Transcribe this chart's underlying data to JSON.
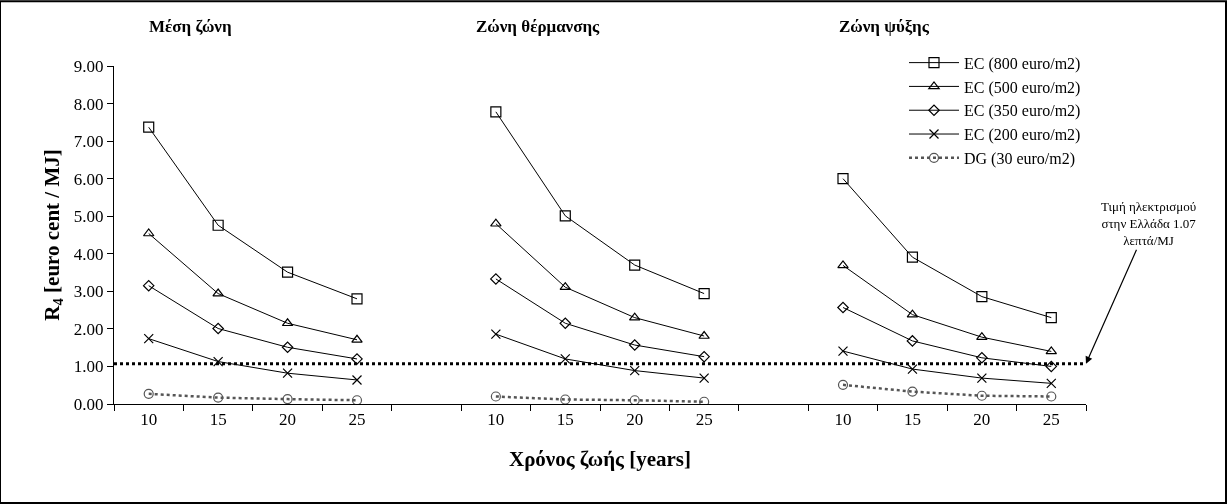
{
  "chart_data": {
    "type": "line",
    "xlabel": "Χρόνος ζωής [years]",
    "ylabel": "R$_{4}$ [euro cent / MJ]",
    "annotations": [
      "Μέση ζώνη",
      "Ζώνη θέρμανσης",
      "Ζώνη ψύξης"
    ],
    "categories": [
      "10",
      "15",
      "20",
      "25",
      null,
      "10",
      "15",
      "20",
      "25",
      null,
      "10",
      "15",
      "20",
      "25"
    ],
    "series": [
      {
        "name": "EC (800 euro/m2)",
        "color": "#000000",
        "marker": "square",
        "line_style": "solid",
        "values": [
          7.37,
          4.76,
          3.51,
          2.8,
          null,
          7.78,
          5.01,
          3.7,
          2.94,
          null,
          6.0,
          3.91,
          2.86,
          2.3
        ]
      },
      {
        "name": "EC (500 euro/m2)",
        "color": "#000000",
        "marker": "triangle",
        "line_style": "solid",
        "values": [
          4.54,
          2.94,
          2.15,
          1.71,
          null,
          4.8,
          3.11,
          2.3,
          1.81,
          null,
          3.69,
          2.38,
          1.78,
          1.4
        ]
      },
      {
        "name": "EC (350 euro/m2)",
        "color": "#000000",
        "marker": "diamond",
        "line_style": "solid",
        "values": [
          3.15,
          2.01,
          1.51,
          1.2,
          null,
          3.33,
          2.15,
          1.57,
          1.26,
          null,
          2.57,
          1.68,
          1.23,
          1.0
        ]
      },
      {
        "name": "EC (200 euro/m2)",
        "color": "#000000",
        "marker": "cross",
        "line_style": "solid",
        "values": [
          1.74,
          1.13,
          0.82,
          0.64,
          null,
          1.86,
          1.2,
          0.89,
          0.69,
          null,
          1.41,
          0.93,
          0.69,
          0.55
        ]
      },
      {
        "name": "DG (30 euro/m2)",
        "color": "#555555",
        "marker": "circle",
        "line_style": "dotted",
        "values": [
          0.27,
          0.17,
          0.13,
          0.1,
          null,
          0.2,
          0.12,
          0.1,
          0.06,
          null,
          0.51,
          0.33,
          0.22,
          0.2
        ]
      }
    ],
    "ylim": [
      0,
      9
    ],
    "yticks": [
      {
        "value": 0,
        "label": "0.00"
      },
      {
        "value": 1,
        "label": "1.00"
      },
      {
        "value": 2,
        "label": "2.00"
      },
      {
        "value": 3,
        "label": "3.00"
      },
      {
        "value": 4,
        "label": "4.00"
      },
      {
        "value": 5,
        "label": "5.00"
      },
      {
        "value": 6,
        "label": "6.00"
      },
      {
        "value": 7,
        "label": "7.00"
      },
      {
        "value": 8,
        "label": "8.00"
      },
      {
        "value": 9,
        "label": "9.00"
      }
    ],
    "ref_lines": [
      {
        "axis": "y",
        "value": 1.07,
        "label": "Τιμή ηλεκτρισμού\nστην Ελλάδα 1.07\nλεπτά/MJ",
        "color": "#000000",
        "line_style": "dotted"
      }
    ],
    "grid": false,
    "legend": "top right"
  }
}
